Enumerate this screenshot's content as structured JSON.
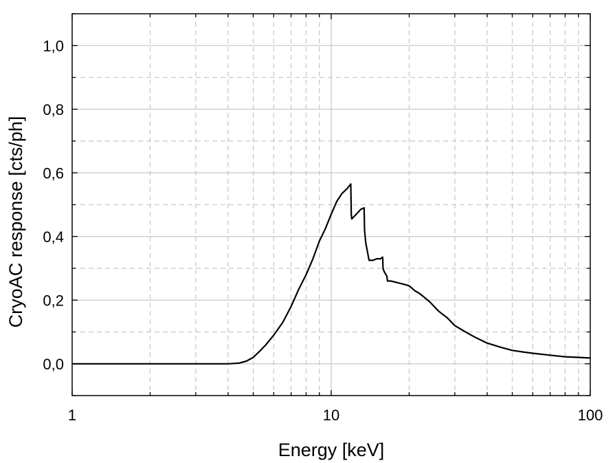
{
  "chart_data": {
    "type": "line",
    "title": "",
    "xlabel": "Energy [keV]",
    "ylabel": "CryoAC response [cts/ph]",
    "x_scale": "log",
    "xlim": [
      1,
      100
    ],
    "ylim": [
      -0.1,
      1.1
    ],
    "grid": true,
    "x_tick_labels": [
      {
        "value": 1,
        "label": "1"
      },
      {
        "value": 10,
        "label": "10"
      },
      {
        "value": 100,
        "label": "100"
      }
    ],
    "y_tick_labels": [
      {
        "value": 0.0,
        "label": "0,0"
      },
      {
        "value": 0.2,
        "label": "0,2"
      },
      {
        "value": 0.4,
        "label": "0,4"
      },
      {
        "value": 0.6,
        "label": "0,6"
      },
      {
        "value": 0.8,
        "label": "0,8"
      },
      {
        "value": 1.0,
        "label": "1,0"
      }
    ],
    "series": [
      {
        "color": "#000000",
        "x": [
          1,
          2,
          3,
          4,
          4.4,
          4.7,
          5.0,
          5.3,
          5.6,
          6.0,
          6.5,
          7.0,
          7.5,
          8.0,
          8.5,
          9.0,
          9.5,
          10.0,
          10.5,
          11.0,
          11.5,
          11.9,
          11.95,
          12.0,
          12.5,
          13.0,
          13.4,
          13.45,
          13.6,
          14.0,
          14.5,
          15.0,
          15.5,
          15.8,
          15.85,
          16.0,
          16.4,
          16.5,
          17.0,
          18.0,
          19.0,
          20.0,
          21.0,
          22.0,
          24.0,
          26.0,
          28.0,
          30.0,
          33.0,
          36.0,
          40.0,
          45.0,
          50.0,
          55.0,
          60.0,
          70.0,
          80.0,
          90.0,
          100.0
        ],
        "y": [
          0.0,
          0.0,
          0.0,
          0.0,
          0.002,
          0.008,
          0.02,
          0.04,
          0.06,
          0.09,
          0.13,
          0.18,
          0.235,
          0.28,
          0.33,
          0.385,
          0.425,
          0.47,
          0.51,
          0.535,
          0.55,
          0.565,
          0.47,
          0.455,
          0.47,
          0.485,
          0.49,
          0.42,
          0.38,
          0.325,
          0.325,
          0.33,
          0.33,
          0.335,
          0.3,
          0.29,
          0.275,
          0.26,
          0.26,
          0.255,
          0.25,
          0.245,
          0.23,
          0.22,
          0.195,
          0.165,
          0.145,
          0.12,
          0.1,
          0.083,
          0.065,
          0.052,
          0.042,
          0.037,
          0.033,
          0.027,
          0.022,
          0.02,
          0.018
        ]
      }
    ]
  }
}
